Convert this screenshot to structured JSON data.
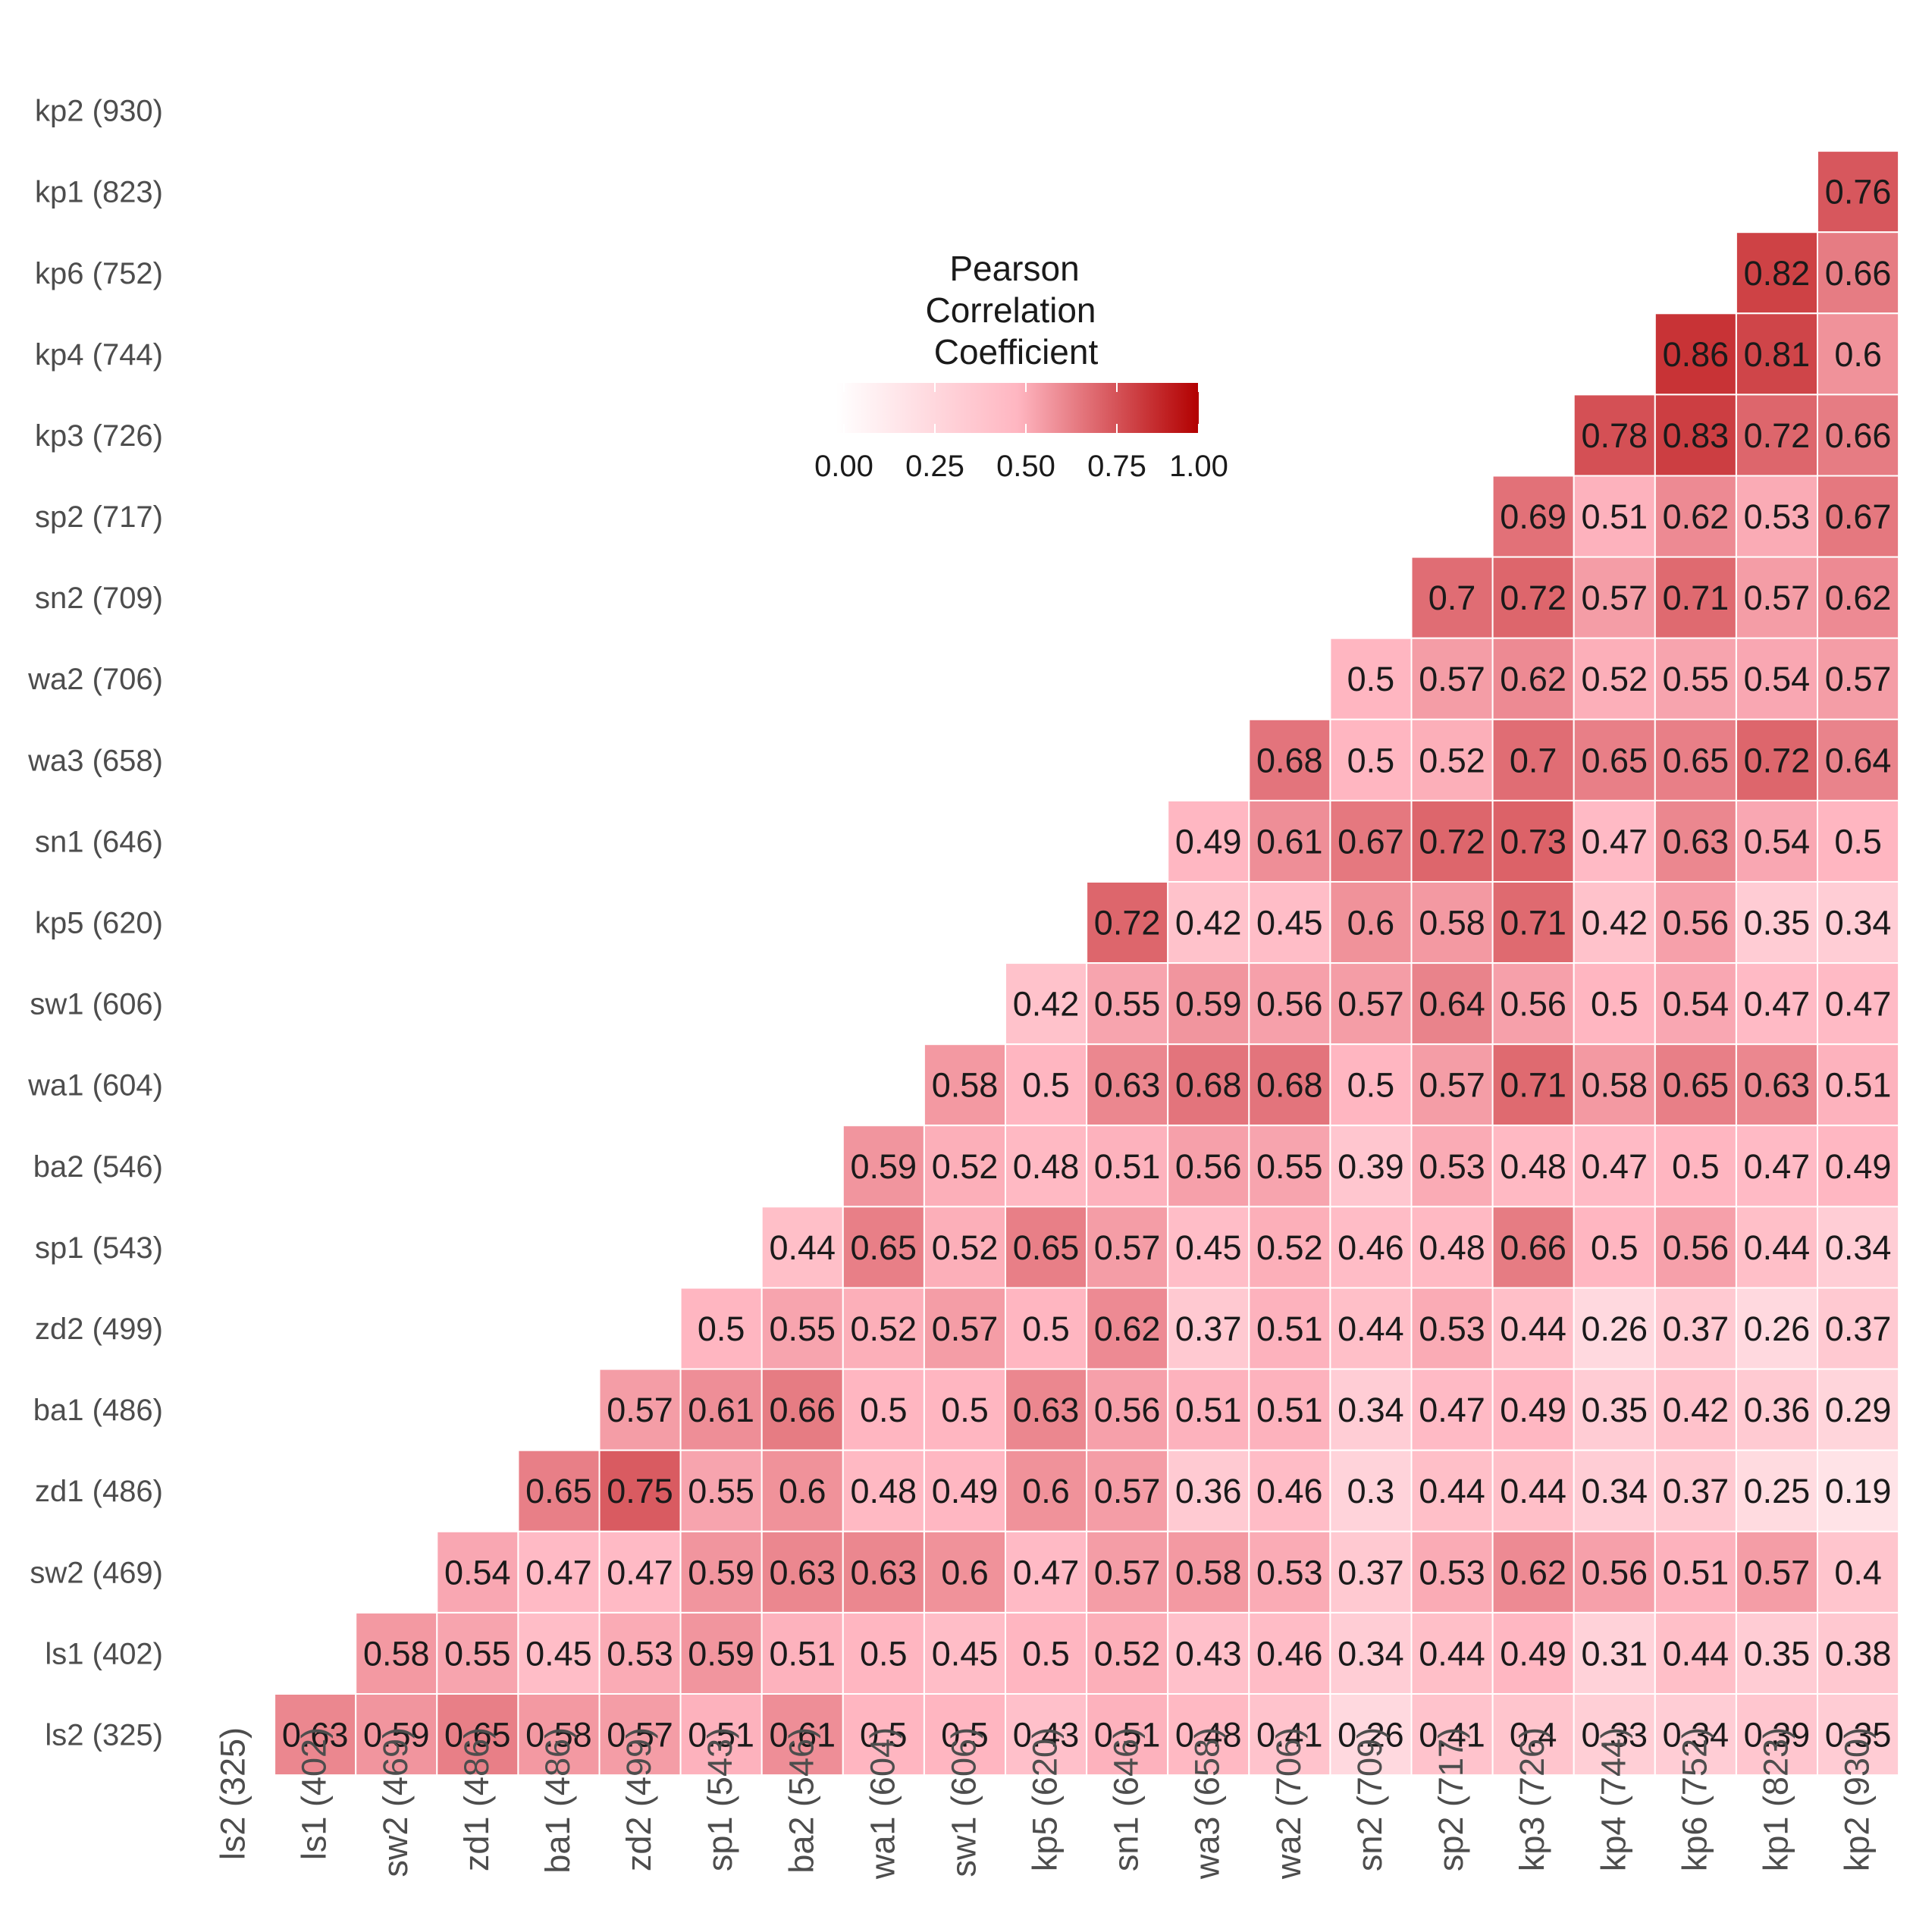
{
  "chart_data": {
    "type": "heatmap",
    "x": [
      "ls2 (325)",
      "ls1 (402)",
      "sw2 (469)",
      "zd1 (486)",
      "ba1 (486)",
      "zd2 (499)",
      "sp1 (543)",
      "ba2 (546)",
      "wa1 (604)",
      "sw1 (606)",
      "kp5 (620)",
      "sn1 (646)",
      "wa3 (658)",
      "wa2 (706)",
      "sn2 (709)",
      "sp2 (717)",
      "kp3 (726)",
      "kp4 (744)",
      "kp6 (752)",
      "kp1 (823)",
      "kp2 (930)"
    ],
    "y": [
      "kp2 (930)",
      "kp1 (823)",
      "kp6 (752)",
      "kp4 (744)",
      "kp3 (726)",
      "sp2 (717)",
      "sn2 (709)",
      "wa2 (706)",
      "wa3 (658)",
      "sn1 (646)",
      "kp5 (620)",
      "sw1 (606)",
      "wa1 (604)",
      "ba2 (546)",
      "sp1 (543)",
      "zd2 (499)",
      "ba1 (486)",
      "zd1 (486)",
      "sw2 (469)",
      "ls1 (402)",
      "ls2 (325)"
    ],
    "values": [
      [
        null,
        null,
        null,
        null,
        null,
        null,
        null,
        null,
        null,
        null,
        null,
        null,
        null,
        null,
        null,
        null,
        null,
        null,
        null,
        null,
        null
      ],
      [
        null,
        null,
        null,
        null,
        null,
        null,
        null,
        null,
        null,
        null,
        null,
        null,
        null,
        null,
        null,
        null,
        null,
        null,
        null,
        null,
        0.76
      ],
      [
        null,
        null,
        null,
        null,
        null,
        null,
        null,
        null,
        null,
        null,
        null,
        null,
        null,
        null,
        null,
        null,
        null,
        null,
        null,
        0.82,
        0.66
      ],
      [
        null,
        null,
        null,
        null,
        null,
        null,
        null,
        null,
        null,
        null,
        null,
        null,
        null,
        null,
        null,
        null,
        null,
        null,
        0.86,
        0.81,
        0.6
      ],
      [
        null,
        null,
        null,
        null,
        null,
        null,
        null,
        null,
        null,
        null,
        null,
        null,
        null,
        null,
        null,
        null,
        null,
        0.78,
        0.83,
        0.72,
        0.66
      ],
      [
        null,
        null,
        null,
        null,
        null,
        null,
        null,
        null,
        null,
        null,
        null,
        null,
        null,
        null,
        null,
        null,
        0.69,
        0.51,
        0.62,
        0.53,
        0.67
      ],
      [
        null,
        null,
        null,
        null,
        null,
        null,
        null,
        null,
        null,
        null,
        null,
        null,
        null,
        null,
        null,
        0.7,
        0.72,
        0.57,
        0.71,
        0.57,
        0.62
      ],
      [
        null,
        null,
        null,
        null,
        null,
        null,
        null,
        null,
        null,
        null,
        null,
        null,
        null,
        null,
        0.5,
        0.57,
        0.62,
        0.52,
        0.55,
        0.54,
        0.57
      ],
      [
        null,
        null,
        null,
        null,
        null,
        null,
        null,
        null,
        null,
        null,
        null,
        null,
        null,
        0.68,
        0.5,
        0.52,
        0.7,
        0.65,
        0.65,
        0.72,
        0.64
      ],
      [
        null,
        null,
        null,
        null,
        null,
        null,
        null,
        null,
        null,
        null,
        null,
        null,
        0.49,
        0.61,
        0.67,
        0.72,
        0.73,
        0.47,
        0.63,
        0.54,
        0.5
      ],
      [
        null,
        null,
        null,
        null,
        null,
        null,
        null,
        null,
        null,
        null,
        null,
        0.72,
        0.42,
        0.45,
        0.6,
        0.58,
        0.71,
        0.42,
        0.56,
        0.35,
        0.34
      ],
      [
        null,
        null,
        null,
        null,
        null,
        null,
        null,
        null,
        null,
        null,
        0.42,
        0.55,
        0.59,
        0.56,
        0.57,
        0.64,
        0.56,
        0.5,
        0.54,
        0.47,
        0.47
      ],
      [
        null,
        null,
        null,
        null,
        null,
        null,
        null,
        null,
        null,
        0.58,
        0.5,
        0.63,
        0.68,
        0.68,
        0.5,
        0.57,
        0.71,
        0.58,
        0.65,
        0.63,
        0.51
      ],
      [
        null,
        null,
        null,
        null,
        null,
        null,
        null,
        null,
        0.59,
        0.52,
        0.48,
        0.51,
        0.56,
        0.55,
        0.39,
        0.53,
        0.48,
        0.47,
        0.5,
        0.47,
        0.49
      ],
      [
        null,
        null,
        null,
        null,
        null,
        null,
        null,
        0.44,
        0.65,
        0.52,
        0.65,
        0.57,
        0.45,
        0.52,
        0.46,
        0.48,
        0.66,
        0.5,
        0.56,
        0.44,
        0.34
      ],
      [
        null,
        null,
        null,
        null,
        null,
        null,
        0.5,
        0.55,
        0.52,
        0.57,
        0.5,
        0.62,
        0.37,
        0.51,
        0.44,
        0.53,
        0.44,
        0.26,
        0.37,
        0.26,
        0.37
      ],
      [
        null,
        null,
        null,
        null,
        null,
        0.57,
        0.61,
        0.66,
        0.5,
        0.5,
        0.63,
        0.56,
        0.51,
        0.51,
        0.34,
        0.47,
        0.49,
        0.35,
        0.42,
        0.36,
        0.29
      ],
      [
        null,
        null,
        null,
        null,
        0.65,
        0.75,
        0.55,
        0.6,
        0.48,
        0.49,
        0.6,
        0.57,
        0.36,
        0.46,
        0.3,
        0.44,
        0.44,
        0.34,
        0.37,
        0.25,
        0.19
      ],
      [
        null,
        null,
        null,
        0.54,
        0.47,
        0.47,
        0.59,
        0.63,
        0.63,
        0.6,
        0.47,
        0.57,
        0.58,
        0.53,
        0.37,
        0.53,
        0.62,
        0.56,
        0.51,
        0.57,
        0.4
      ],
      [
        null,
        null,
        0.58,
        0.55,
        0.45,
        0.53,
        0.59,
        0.51,
        0.5,
        0.45,
        0.5,
        0.52,
        0.43,
        0.46,
        0.34,
        0.44,
        0.49,
        0.31,
        0.44,
        0.35,
        0.38
      ],
      [
        null,
        0.63,
        0.59,
        0.65,
        0.58,
        0.57,
        0.51,
        0.61,
        0.5,
        0.5,
        0.43,
        0.51,
        0.48,
        0.41,
        0.26,
        0.41,
        0.4,
        0.33,
        0.34,
        0.39,
        0.35
      ]
    ],
    "legend": {
      "title_lines": [
        "Pearson",
        "Correlation",
        "Coefficient"
      ],
      "ticks": [
        "0.00",
        "0.25",
        "0.50",
        "0.75",
        "1.00"
      ],
      "range": [
        0,
        1
      ],
      "placement": "inside-top-center"
    },
    "colors": {
      "low": "#ffffff",
      "mid": "#ffb6c1",
      "high": "#b20000",
      "gridline": "#ffffff"
    }
  }
}
